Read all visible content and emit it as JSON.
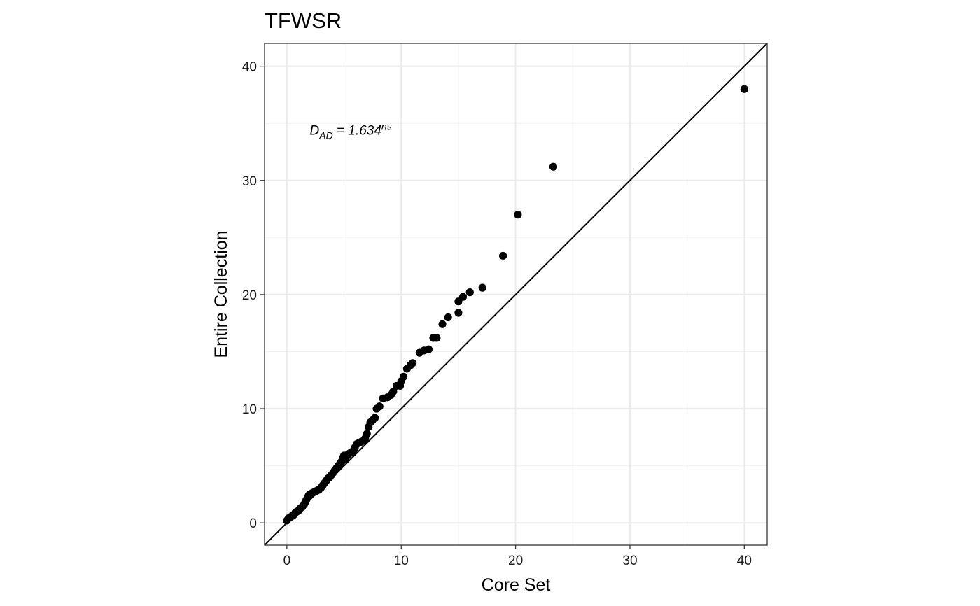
{
  "chart_data": {
    "type": "scatter",
    "title": "TFWSR",
    "xlabel": "Core Set",
    "ylabel": "Entire Collection",
    "xlim": [
      -1.95,
      42
    ],
    "ylim": [
      -1.95,
      42
    ],
    "x_ticks": [
      0,
      10,
      20,
      30,
      40
    ],
    "y_ticks": [
      0,
      10,
      20,
      30,
      40
    ],
    "x_tick_labels": [
      "0",
      "10",
      "20",
      "30",
      "40"
    ],
    "y_tick_labels": [
      "0",
      "10",
      "20",
      "30",
      "40"
    ],
    "grid": true,
    "reference_line": "y = x",
    "annotation": {
      "main": "D",
      "subscript": "AD",
      "equals": " = 1.634",
      "superscript": "ns",
      "x": 2,
      "y": 34
    },
    "x": [
      0.0,
      0.15,
      0.3,
      0.45,
      0.6,
      0.75,
      0.9,
      1.05,
      1.2,
      1.35,
      1.5,
      1.6,
      1.7,
      1.8,
      1.9,
      2.0,
      2.2,
      2.4,
      2.6,
      2.8,
      3.0,
      3.15,
      3.3,
      3.45,
      3.6,
      3.75,
      3.9,
      4.05,
      4.2,
      4.35,
      4.5,
      4.65,
      4.8,
      4.9,
      5.0,
      5.1,
      5.2,
      5.35,
      5.5,
      5.65,
      5.8,
      5.95,
      6.1,
      6.3,
      6.5,
      6.7,
      6.85,
      7.0,
      7.15,
      7.3,
      7.5,
      7.7,
      7.85,
      8.1,
      8.4,
      8.8,
      9.1,
      9.3,
      9.6,
      9.9,
      10.0,
      10.2,
      10.5,
      10.8,
      11.0,
      11.6,
      12.0,
      12.4,
      12.8,
      13.1,
      13.6,
      14.1,
      15.0,
      15.0,
      15.4,
      16.0,
      17.1,
      18.9,
      20.2,
      23.3,
      40.0
    ],
    "y": [
      0.2,
      0.4,
      0.5,
      0.6,
      0.7,
      0.9,
      1.0,
      1.1,
      1.3,
      1.4,
      1.6,
      1.8,
      2.0,
      2.2,
      2.4,
      2.5,
      2.6,
      2.7,
      2.8,
      2.9,
      3.1,
      3.3,
      3.5,
      3.7,
      3.9,
      4.0,
      4.2,
      4.4,
      4.6,
      4.8,
      5.0,
      5.2,
      5.4,
      5.7,
      5.9,
      5.6,
      5.8,
      6.0,
      6.1,
      6.2,
      6.3,
      6.6,
      6.9,
      7.0,
      7.1,
      7.2,
      7.4,
      7.8,
      8.4,
      8.8,
      9.0,
      9.2,
      10.0,
      10.2,
      10.9,
      11.0,
      11.2,
      11.5,
      12.0,
      12.0,
      12.4,
      12.8,
      13.5,
      13.8,
      14.0,
      14.9,
      15.1,
      15.2,
      16.2,
      16.2,
      17.4,
      18.0,
      18.4,
      19.4,
      19.8,
      20.2,
      20.6,
      23.4,
      27.0,
      31.2,
      38.0
    ]
  }
}
